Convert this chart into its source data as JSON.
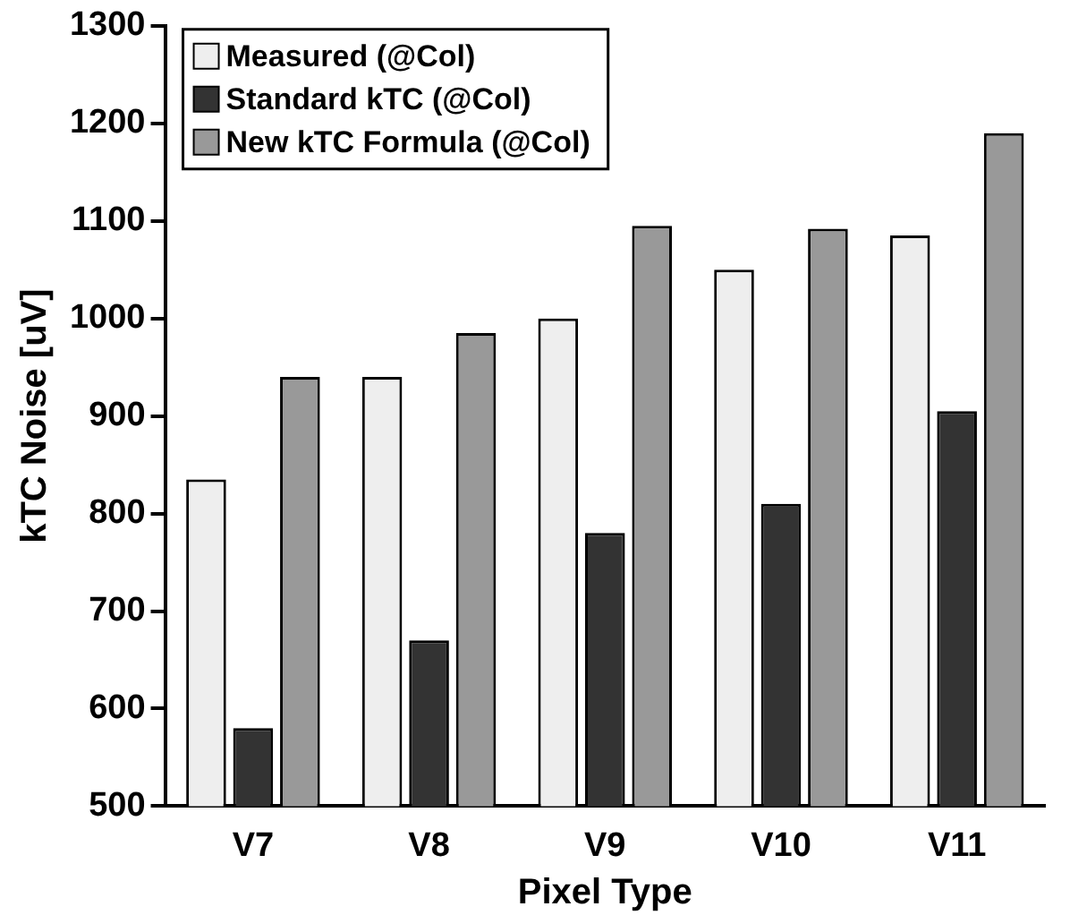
{
  "chart_data": {
    "type": "bar",
    "xlabel": "Pixel Type",
    "ylabel": "kTC Noise [uV]",
    "categories": [
      "V7",
      "V8",
      "V9",
      "V10",
      "V11"
    ],
    "series": [
      {
        "name": "Measured (@Col)",
        "color": "#eeeeee",
        "values": [
          835,
          940,
          1000,
          1050,
          1085
        ]
      },
      {
        "name": "Standard kTC (@Col)",
        "color": "#333333",
        "values": [
          580,
          670,
          780,
          810,
          905
        ]
      },
      {
        "name": "New kTC Formula (@Col)",
        "color": "#999999",
        "values": [
          940,
          985,
          1095,
          1092,
          1190
        ]
      }
    ],
    "ylim": [
      500,
      1300
    ],
    "yticks": [
      500,
      600,
      700,
      800,
      900,
      1000,
      1100,
      1200,
      1300
    ],
    "grid": false,
    "legend": "top left"
  }
}
